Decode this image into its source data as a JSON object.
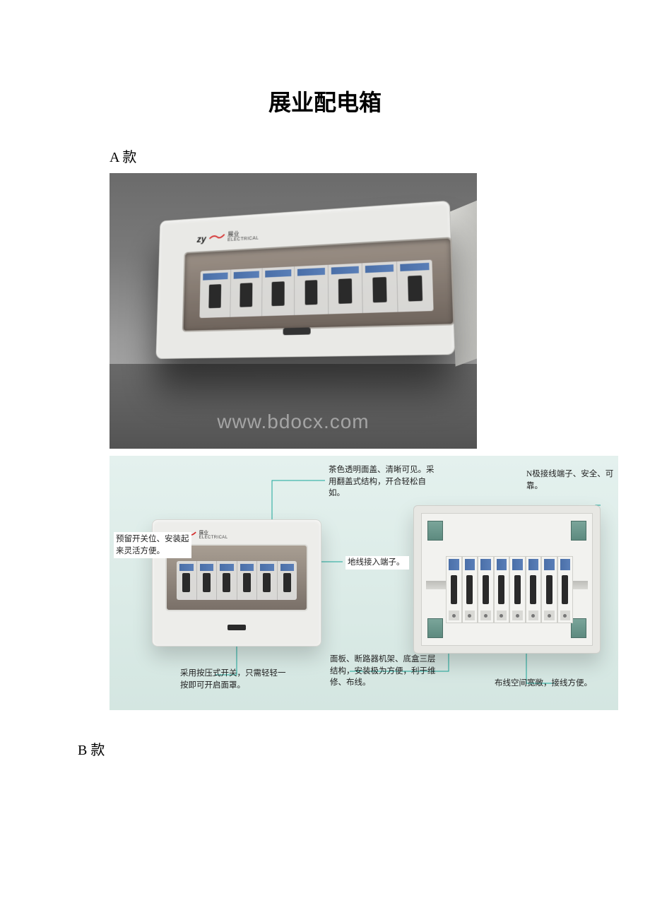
{
  "doc_title": "展业配电箱",
  "model_a_label": "A 款",
  "model_b_label": "B 款",
  "watermark": "www.bdocx.com",
  "logo": {
    "text": "zy",
    "sub": "ELECTRICAL",
    "swoosh_color": "#d42a2a"
  },
  "photo": {
    "bg_top": "#6b6b6b",
    "bg_bottom": "#b8b8b8",
    "box_color": "#e9e9e6",
    "window_tint": "rgba(80,60,45,0.6)",
    "breaker_slots": 7
  },
  "infographic": {
    "bg_top": "#e4f1ee",
    "bg_bottom": "#d4e6e1",
    "leader_color": "#1aa79a",
    "annot_font_size_pt": 9,
    "closed_box": {
      "breaker_slots": 6
    },
    "open_box": {
      "breaker_modules": 8,
      "terminal_color": "#5d8a7f"
    },
    "annotations": {
      "a1": "预留开关位、安装起来灵活方便。",
      "a2": "茶色透明面盖、清晰可见。采用翻盖式结构，开合轻松自如。",
      "a3": "地线接入端子。",
      "a4": "采用按压式开关，只需轻轻一按即可开启面罩。",
      "a5": "面板、断路器机架、底盒三层结构，安装极为方便，利于维修、布线。",
      "a6": "N极接线端子、安全、可靠。",
      "a7": "布线空间宽敞，接线方便。"
    }
  }
}
